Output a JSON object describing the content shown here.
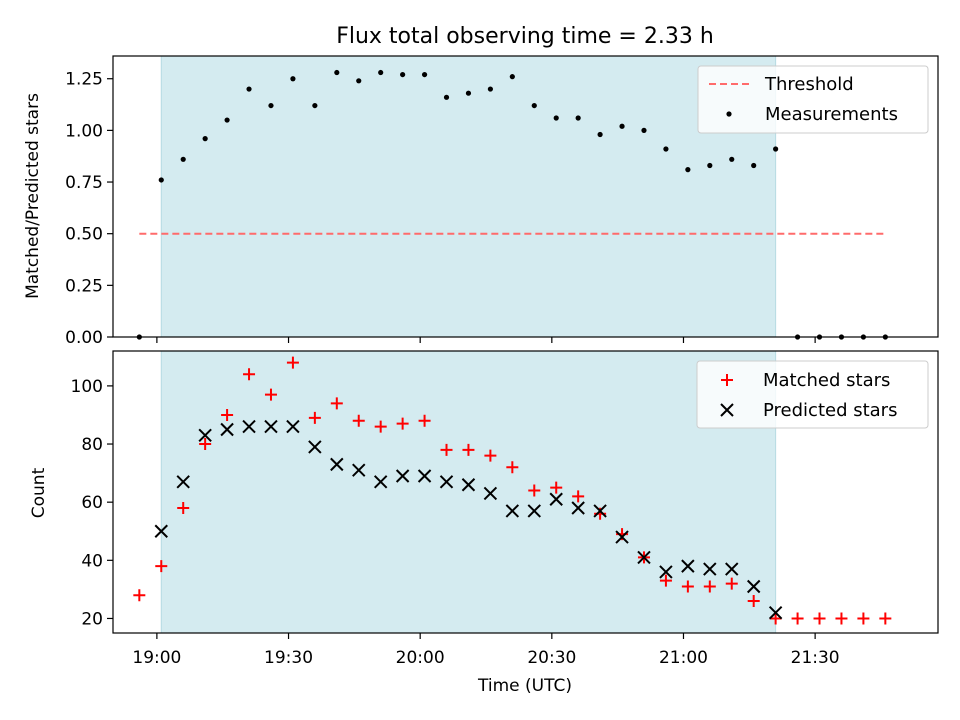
{
  "chart_data": [
    {
      "type": "scatter",
      "title": "Flux total observing time = 2.33 h",
      "xlabel": "",
      "ylabel": "Matched/Predicted stars",
      "ylim": [
        0,
        1.36
      ],
      "yticks": [
        "0.00",
        "0.25",
        "0.50",
        "0.75",
        "1.00",
        "1.25"
      ],
      "ytick_values": [
        0,
        0.25,
        0.5,
        0.75,
        1.0,
        1.25
      ],
      "shaded_range": [
        "19:01",
        "21:21"
      ],
      "legend_position": "top-right",
      "threshold": {
        "name": "Threshold",
        "value": 0.5,
        "x_range": [
          "18:56",
          "21:46"
        ],
        "color": "#ff6b6b"
      },
      "series": [
        {
          "name": "Measurements",
          "color": "#000000",
          "x": [
            "18:56",
            "19:01",
            "19:06",
            "19:11",
            "19:16",
            "19:21",
            "19:26",
            "19:31",
            "19:36",
            "19:41",
            "19:46",
            "19:51",
            "19:56",
            "20:01",
            "20:06",
            "20:11",
            "20:16",
            "20:21",
            "20:26",
            "20:31",
            "20:36",
            "20:41",
            "20:46",
            "20:51",
            "20:56",
            "21:01",
            "21:06",
            "21:11",
            "21:16",
            "21:21",
            "21:26",
            "21:31",
            "21:36",
            "21:41",
            "21:46"
          ],
          "y": [
            0.0,
            0.76,
            0.86,
            0.96,
            1.05,
            1.2,
            1.12,
            1.25,
            1.12,
            1.28,
            1.24,
            1.28,
            1.27,
            1.27,
            1.16,
            1.18,
            1.2,
            1.26,
            1.12,
            1.06,
            1.06,
            0.98,
            1.02,
            1.0,
            0.91,
            0.81,
            0.83,
            0.86,
            0.83,
            0.91,
            0.0,
            0.0,
            0.0,
            0.0,
            0.0
          ]
        }
      ]
    },
    {
      "type": "scatter",
      "title": "",
      "xlabel": "Time (UTC)",
      "ylabel": "Count",
      "ylim": [
        15,
        112
      ],
      "yticks": [
        "20",
        "40",
        "60",
        "80",
        "100"
      ],
      "ytick_values": [
        20,
        40,
        60,
        80,
        100
      ],
      "xticks": [
        "19:00",
        "19:30",
        "20:00",
        "20:30",
        "21:00",
        "21:30"
      ],
      "shaded_range": [
        "19:01",
        "21:21"
      ],
      "legend_position": "top-right",
      "series": [
        {
          "name": "Matched stars",
          "marker": "plus",
          "color": "#ff0000",
          "x": [
            "18:56",
            "19:01",
            "19:06",
            "19:11",
            "19:16",
            "19:21",
            "19:26",
            "19:31",
            "19:36",
            "19:41",
            "19:46",
            "19:51",
            "19:56",
            "20:01",
            "20:06",
            "20:11",
            "20:16",
            "20:21",
            "20:26",
            "20:31",
            "20:36",
            "20:41",
            "20:46",
            "20:51",
            "20:56",
            "21:01",
            "21:06",
            "21:11",
            "21:16",
            "21:21",
            "21:26",
            "21:31",
            "21:36",
            "21:41",
            "21:46"
          ],
          "y": [
            28,
            38,
            58,
            80,
            90,
            104,
            97,
            108,
            89,
            94,
            88,
            86,
            87,
            88,
            78,
            78,
            76,
            72,
            64,
            65,
            62,
            56,
            49,
            41,
            33,
            31,
            31,
            32,
            26,
            20,
            20,
            20,
            20,
            20,
            20
          ]
        },
        {
          "name": "Predicted stars",
          "marker": "x",
          "color": "#000000",
          "x": [
            "19:01",
            "19:06",
            "19:11",
            "19:16",
            "19:21",
            "19:26",
            "19:31",
            "19:36",
            "19:41",
            "19:46",
            "19:51",
            "19:56",
            "20:01",
            "20:06",
            "20:11",
            "20:16",
            "20:21",
            "20:26",
            "20:31",
            "20:36",
            "20:41",
            "20:46",
            "20:51",
            "20:56",
            "21:01",
            "21:06",
            "21:11",
            "21:16",
            "21:21"
          ],
          "y": [
            50,
            67,
            83,
            85,
            86,
            86,
            86,
            79,
            73,
            71,
            67,
            69,
            69,
            67,
            66,
            63,
            57,
            57,
            61,
            58,
            57,
            48,
            41,
            36,
            38,
            37,
            37,
            31,
            22
          ]
        }
      ]
    }
  ],
  "x_axis": {
    "min": "18:50",
    "max": "21:58"
  },
  "colors": {
    "shade": "#d4ebf0",
    "shade_edge": "#b6dbe3"
  }
}
